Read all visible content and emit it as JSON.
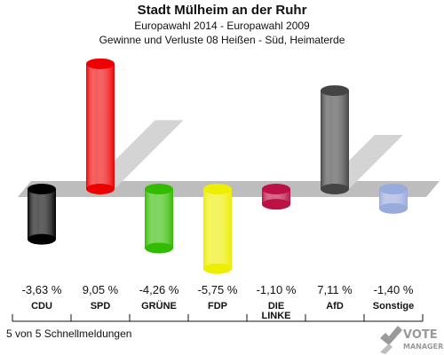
{
  "header": {
    "title": "Stadt Mülheim an der Ruhr",
    "subtitle": "Europawahl 2014 - Europawahl 2009",
    "description": "Gewinne und Verluste 08 Heißen - Süd, Heimaterde"
  },
  "footer": {
    "note": "5 von 5 Schnellmeldungen"
  },
  "logo": {
    "line1": "VOTE",
    "line2": "MANAGER"
  },
  "chart_data": {
    "type": "bar",
    "title": "Gewinne und Verluste 08 Heißen - Süd, Heimaterde",
    "categories": [
      "CDU",
      "SPD",
      "GRÜNE",
      "FDP",
      "DIE LINKE",
      "AfD",
      "Sonstige"
    ],
    "category_lines": [
      [
        "CDU"
      ],
      [
        "SPD"
      ],
      [
        "GRÜNE"
      ],
      [
        "FDP"
      ],
      [
        "DIE",
        "LINKE"
      ],
      [
        "AfD"
      ],
      [
        "Sonstige"
      ]
    ],
    "values": [
      -3.63,
      9.05,
      -4.26,
      -5.75,
      -1.1,
      7.11,
      -1.4
    ],
    "value_labels": [
      "-3,63 %",
      "9,05 %",
      "-4,26 %",
      "-5,75 %",
      "-1,10 %",
      "7,11 %",
      "-1,40 %"
    ],
    "colors": [
      "#000000",
      "#ee0000",
      "#33bb00",
      "#eeee00",
      "#bb1144",
      "#444444",
      "#99aadd"
    ],
    "unit": "%",
    "ylim": [
      -6,
      10
    ],
    "grid": false,
    "legend": "none"
  }
}
